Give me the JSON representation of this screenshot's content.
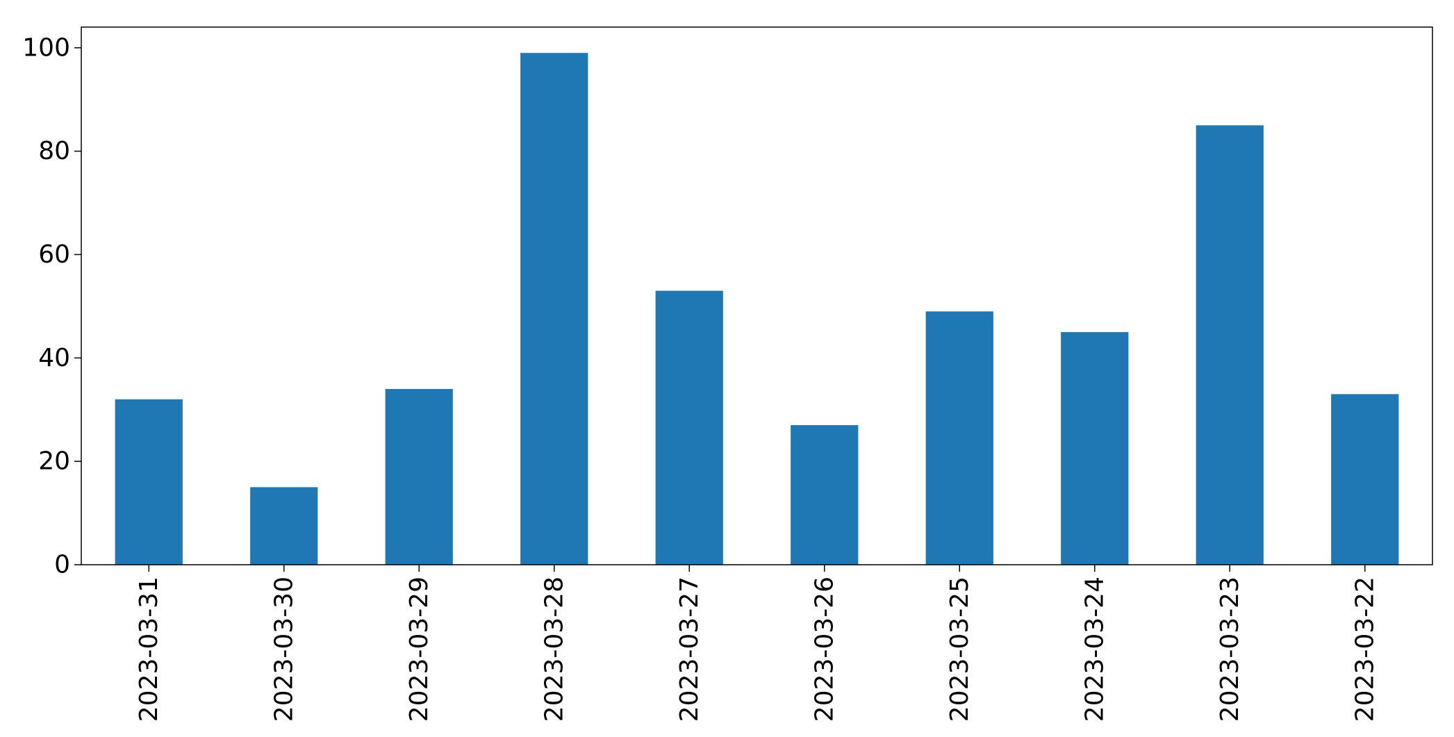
{
  "chart_data": {
    "type": "bar",
    "title": "",
    "xlabel": "",
    "ylabel": "",
    "categories": [
      "2023-03-31",
      "2023-03-30",
      "2023-03-29",
      "2023-03-28",
      "2023-03-27",
      "2023-03-26",
      "2023-03-25",
      "2023-03-24",
      "2023-03-23",
      "2023-03-22"
    ],
    "values": [
      32,
      15,
      34,
      99,
      53,
      27,
      49,
      45,
      85,
      33
    ],
    "ylim": [
      0,
      104
    ],
    "yticks": [
      0,
      20,
      40,
      60,
      80,
      100
    ],
    "grid": false,
    "legend": "none",
    "bar_color": "#1f77b4"
  }
}
